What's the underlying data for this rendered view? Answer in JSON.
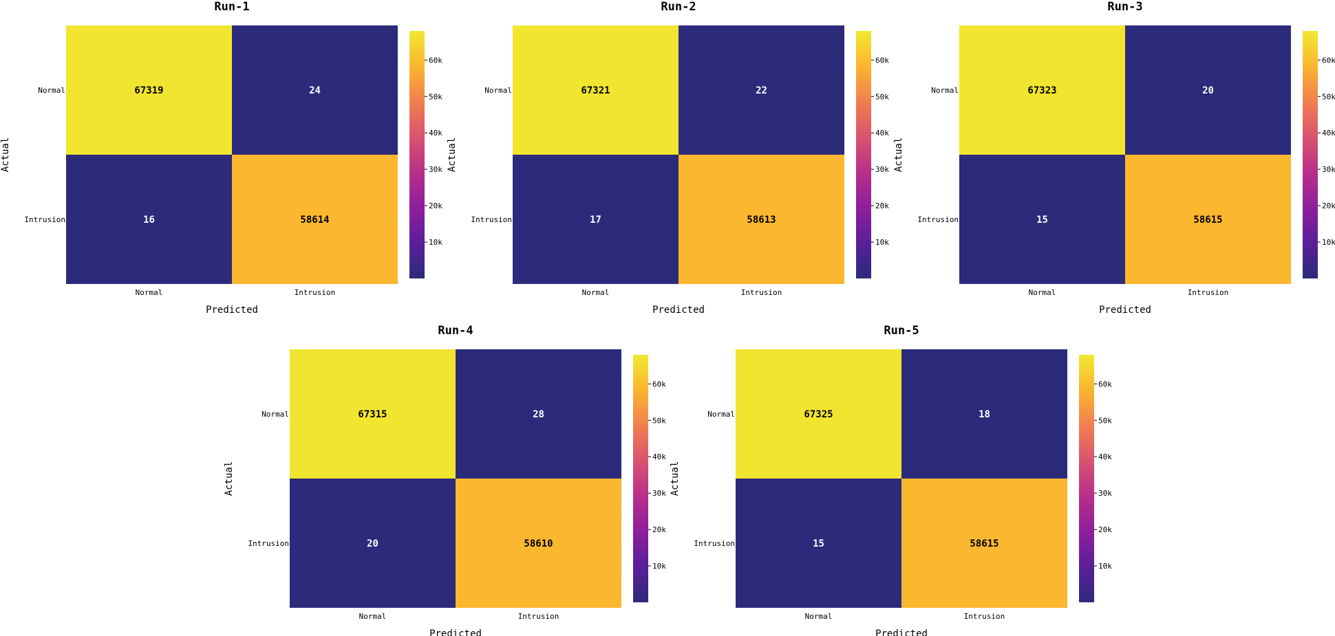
{
  "chart_data": [
    {
      "type": "heatmap",
      "title": "Run-1",
      "xlabel": "Predicted",
      "ylabel": "Actual",
      "x_categories": [
        "Normal",
        "Intrusion"
      ],
      "y_categories": [
        "Normal",
        "Intrusion"
      ],
      "values": [
        [
          67319,
          24
        ],
        [
          16,
          58614
        ]
      ],
      "colorbar": {
        "range": [
          0,
          68000
        ],
        "ticks": [
          10000,
          20000,
          30000,
          40000,
          50000,
          60000
        ],
        "tick_labels": [
          "10k",
          "20k",
          "30k",
          "40k",
          "50k",
          "60k"
        ]
      }
    },
    {
      "type": "heatmap",
      "title": "Run-2",
      "xlabel": "Predicted",
      "ylabel": "Actual",
      "x_categories": [
        "Normal",
        "Intrusion"
      ],
      "y_categories": [
        "Normal",
        "Intrusion"
      ],
      "values": [
        [
          67321,
          22
        ],
        [
          17,
          58613
        ]
      ],
      "colorbar": {
        "range": [
          0,
          68000
        ],
        "ticks": [
          10000,
          20000,
          30000,
          40000,
          50000,
          60000
        ],
        "tick_labels": [
          "10k",
          "20k",
          "30k",
          "40k",
          "50k",
          "60k"
        ]
      }
    },
    {
      "type": "heatmap",
      "title": "Run-3",
      "xlabel": "Predicted",
      "ylabel": "Actual",
      "x_categories": [
        "Normal",
        "Intrusion"
      ],
      "y_categories": [
        "Normal",
        "Intrusion"
      ],
      "values": [
        [
          67323,
          20
        ],
        [
          15,
          58615
        ]
      ],
      "colorbar": {
        "range": [
          0,
          68000
        ],
        "ticks": [
          10000,
          20000,
          30000,
          40000,
          50000,
          60000
        ],
        "tick_labels": [
          "10k",
          "20k",
          "30k",
          "40k",
          "50k",
          "60k"
        ]
      }
    },
    {
      "type": "heatmap",
      "title": "Run-4",
      "xlabel": "Predicted",
      "ylabel": "Actual",
      "x_categories": [
        "Normal",
        "Intrusion"
      ],
      "y_categories": [
        "Normal",
        "Intrusion"
      ],
      "values": [
        [
          67315,
          28
        ],
        [
          20,
          58610
        ]
      ],
      "colorbar": {
        "range": [
          0,
          68000
        ],
        "ticks": [
          10000,
          20000,
          30000,
          40000,
          50000,
          60000
        ],
        "tick_labels": [
          "10k",
          "20k",
          "30k",
          "40k",
          "50k",
          "60k"
        ]
      }
    },
    {
      "type": "heatmap",
      "title": "Run-5",
      "xlabel": "Predicted",
      "ylabel": "Actual",
      "x_categories": [
        "Normal",
        "Intrusion"
      ],
      "y_categories": [
        "Normal",
        "Intrusion"
      ],
      "values": [
        [
          67325,
          18
        ],
        [
          15,
          58615
        ]
      ],
      "colorbar": {
        "range": [
          0,
          68000
        ],
        "ticks": [
          10000,
          20000,
          30000,
          40000,
          50000,
          60000
        ],
        "tick_labels": [
          "10k",
          "20k",
          "30k",
          "40k",
          "50k",
          "60k"
        ]
      }
    }
  ],
  "colormap": {
    "name": "plasma-like",
    "stops": [
      "#2c2a7a",
      "#5a1f9a",
      "#8e1f9c",
      "#b82f8a",
      "#d9536f",
      "#f07f4f",
      "#fbb52f",
      "#f0e930"
    ]
  }
}
